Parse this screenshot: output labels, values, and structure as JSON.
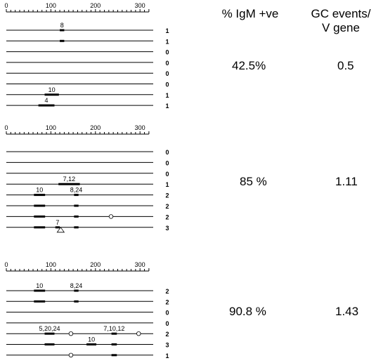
{
  "header": {
    "pct_label": "% IgM +ve",
    "gc_label_line1": "GC events/",
    "gc_label_line2": "V gene"
  },
  "axis_ticks": [
    "0",
    "100",
    "200",
    "300"
  ],
  "panels": [
    {
      "pct": "42.5%",
      "gc": "0.5",
      "rows": [
        {
          "count": "1",
          "bars": [
            {
              "from": 120,
              "to": 130,
              "label": "8"
            }
          ],
          "circles": [],
          "triangles": []
        },
        {
          "count": "1",
          "bars": [
            {
              "from": 120,
              "to": 130,
              "label": ""
            }
          ],
          "circles": [],
          "triangles": []
        },
        {
          "count": "0",
          "bars": [],
          "circles": [],
          "triangles": []
        },
        {
          "count": "0",
          "bars": [],
          "circles": [],
          "triangles": []
        },
        {
          "count": "0",
          "bars": [],
          "circles": [],
          "triangles": []
        },
        {
          "count": "0",
          "bars": [],
          "circles": [],
          "triangles": []
        },
        {
          "count": "1",
          "bars": [
            {
              "from": 86,
              "to": 118,
              "label": "10"
            }
          ],
          "circles": [],
          "triangles": []
        },
        {
          "count": "1",
          "bars": [
            {
              "from": 72,
              "to": 108,
              "label": "4"
            }
          ],
          "circles": [],
          "triangles": []
        }
      ]
    },
    {
      "pct": "85 %",
      "gc": "1.11",
      "rows": [
        {
          "count": "0",
          "bars": [],
          "circles": [],
          "triangles": []
        },
        {
          "count": "0",
          "bars": [],
          "circles": [],
          "triangles": []
        },
        {
          "count": "0",
          "bars": [],
          "circles": [],
          "triangles": []
        },
        {
          "count": "1",
          "bars": [
            {
              "from": 117,
              "to": 165,
              "label": "7,12"
            }
          ],
          "circles": [],
          "triangles": []
        },
        {
          "count": "2",
          "bars": [
            {
              "from": 62,
              "to": 87,
              "label": "10"
            },
            {
              "from": 152,
              "to": 162,
              "label": "8,24"
            }
          ],
          "circles": [],
          "triangles": []
        },
        {
          "count": "2",
          "bars": [
            {
              "from": 62,
              "to": 87,
              "label": ""
            },
            {
              "from": 152,
              "to": 162,
              "label": ""
            }
          ],
          "circles": [],
          "triangles": []
        },
        {
          "count": "2",
          "bars": [
            {
              "from": 62,
              "to": 87,
              "label": ""
            },
            {
              "from": 152,
              "to": 162,
              "label": ""
            }
          ],
          "circles": [
            235
          ],
          "triangles": []
        },
        {
          "count": "3",
          "bars": [
            {
              "from": 62,
              "to": 87,
              "label": ""
            },
            {
              "from": 110,
              "to": 120,
              "label": "7"
            },
            {
              "from": 152,
              "to": 162,
              "label": ""
            }
          ],
          "circles": [],
          "triangles": [
            122
          ]
        }
      ]
    },
    {
      "pct": "90.8 %",
      "gc": "1.43",
      "rows": [
        {
          "count": "2",
          "bars": [
            {
              "from": 62,
              "to": 87,
              "label": "10"
            },
            {
              "from": 152,
              "to": 162,
              "label": "8,24"
            }
          ],
          "circles": [],
          "triangles": []
        },
        {
          "count": "2",
          "bars": [
            {
              "from": 62,
              "to": 87,
              "label": ""
            },
            {
              "from": 152,
              "to": 162,
              "label": ""
            }
          ],
          "circles": [],
          "triangles": []
        },
        {
          "count": "0",
          "bars": [],
          "circles": [],
          "triangles": []
        },
        {
          "count": "0",
          "bars": [],
          "circles": [],
          "triangles": []
        },
        {
          "count": "2",
          "bars": [
            {
              "from": 86,
              "to": 108,
              "label": "5,20,24"
            },
            {
              "from": 236,
              "to": 248,
              "label": "7,10,12"
            }
          ],
          "circles": [
            145,
            297
          ],
          "triangles": []
        },
        {
          "count": "3",
          "bars": [
            {
              "from": 86,
              "to": 108,
              "label": ""
            },
            {
              "from": 180,
              "to": 202,
              "label": "10"
            },
            {
              "from": 236,
              "to": 248,
              "label": ""
            }
          ],
          "circles": [],
          "triangles": []
        },
        {
          "count": "1",
          "bars": [
            {
              "from": 236,
              "to": 248,
              "label": ""
            }
          ],
          "circles": [
            145
          ],
          "triangles": []
        }
      ]
    }
  ]
}
